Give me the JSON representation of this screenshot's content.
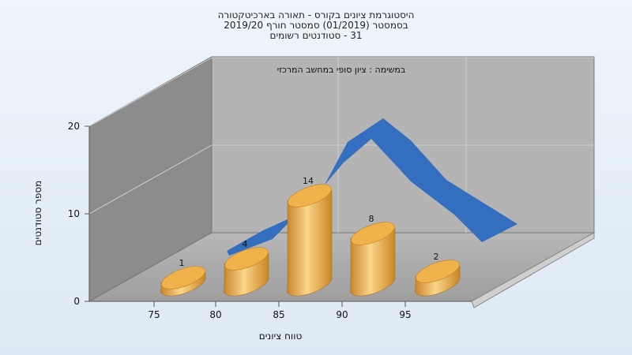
{
  "chart_data": {
    "type": "bar",
    "title_lines": [
      "היסטוגרמת ציונים בקורס - תאורה בארכיטקטורה",
      "בסמסטר  (01/2019)  סמסטר חורף 2019/20",
      "31 - סטודנטים רשומים"
    ],
    "annotation": "במשימה : ציון סופי במחשב המרכזי",
    "xlabel": "טווח ציונים",
    "ylabel": "מספר סטודנטים",
    "x_ticks": [
      "75",
      "80",
      "85",
      "90",
      "95"
    ],
    "y_ticks": [
      "0",
      "10",
      "20"
    ],
    "ylim": [
      0,
      20
    ],
    "categories": [
      "75-80",
      "80-85",
      "85-90",
      "90-95",
      "95-100"
    ],
    "values": [
      1,
      4,
      14,
      8,
      2
    ],
    "value_labels": [
      "1",
      "4",
      "14",
      "8",
      "2"
    ],
    "curve_peak": 20,
    "colors": {
      "bar": "#e8a53c",
      "bar_light": "#fbd58a",
      "curve": "#2f6bbf"
    },
    "grid": true
  }
}
